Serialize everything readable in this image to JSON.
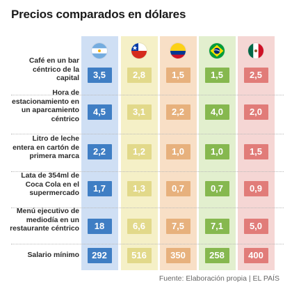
{
  "title": "Precios comparados en dólares",
  "source": "Fuente: Elaboración propia | EL PAÍS",
  "chart_data": {
    "type": "table",
    "countries": [
      {
        "flag": "argentina-flag-icon",
        "bg": "#cfdff4",
        "cell": "#3f7ec4"
      },
      {
        "flag": "chile-flag-icon",
        "bg": "#f5f0c7",
        "cell": "#e2d98a"
      },
      {
        "flag": "colombia-flag-icon",
        "bg": "#f8dfc6",
        "cell": "#e7b17d"
      },
      {
        "flag": "brazil-flag-icon",
        "bg": "#e2efce",
        "cell": "#86b84f"
      },
      {
        "flag": "mexico-flag-icon",
        "bg": "#f5d6d4",
        "cell": "#e17c79"
      }
    ],
    "rows": [
      {
        "label": "Café en un bar céntrico de la capital",
        "values": [
          "3,5",
          "2,8",
          "1,5",
          "1,5",
          "2,5"
        ]
      },
      {
        "label": "Hora de estacionamiento en un aparcamiento céntrico",
        "values": [
          "4,5",
          "3,1",
          "2,2",
          "4,0",
          "2,0"
        ]
      },
      {
        "label": "Litro de leche entera en cartón de primera marca",
        "values": [
          "2,2",
          "1,2",
          "1,0",
          "1,0",
          "1,5"
        ]
      },
      {
        "label": "Lata de 354ml de Coca Cola en el supermercado",
        "values": [
          "1,7",
          "1,3",
          "0,7",
          "0,7",
          "0,9"
        ]
      },
      {
        "label": "Menú ejecutivo de mediodía en un restaurante céntrico",
        "values": [
          "18",
          "6,6",
          "7,5",
          "7,1",
          "5,0"
        ]
      },
      {
        "label": "Salario mínimo",
        "values": [
          "292",
          "516",
          "350",
          "258",
          "400"
        ]
      }
    ]
  }
}
